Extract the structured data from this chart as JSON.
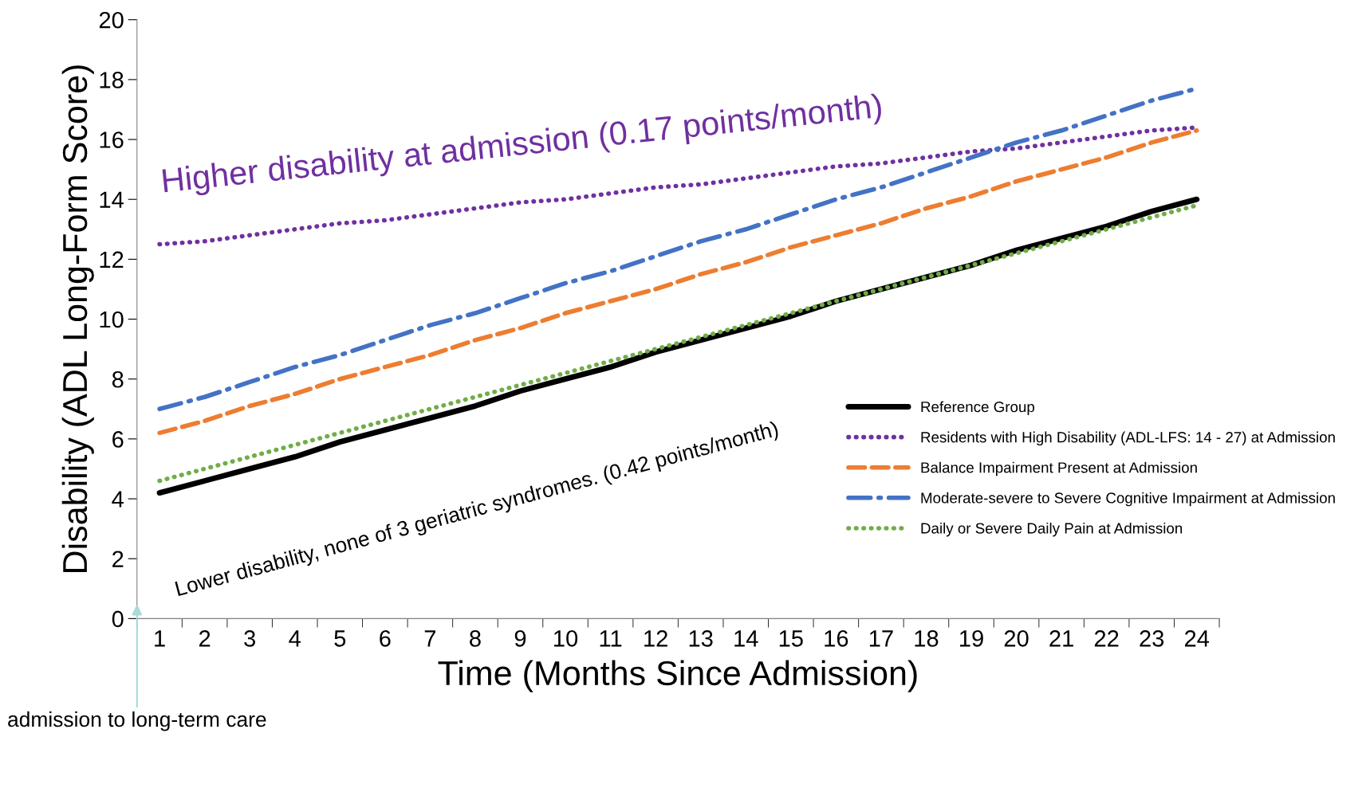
{
  "chart_data": {
    "type": "line",
    "xlabel": "Time (Months Since Admission)",
    "ylabel": "Disability (ADL Long-Form Score)",
    "categories": [
      "1",
      "2",
      "3",
      "4",
      "5",
      "6",
      "7",
      "8",
      "9",
      "10",
      "11",
      "12",
      "13",
      "14",
      "15",
      "16",
      "17",
      "18",
      "19",
      "20",
      "21",
      "22",
      "23",
      "24"
    ],
    "ylim": [
      0,
      20
    ],
    "yticks": [
      0,
      2,
      4,
      6,
      8,
      10,
      12,
      14,
      16,
      18,
      20
    ],
    "grid": false,
    "legend": "right",
    "marker": "none",
    "series": [
      {
        "name": "Reference Group",
        "color": "#000000",
        "line_style": "solid",
        "values": [
          4.2,
          4.6,
          5.0,
          5.4,
          5.9,
          6.3,
          6.7,
          7.1,
          7.6,
          8.0,
          8.4,
          8.9,
          9.3,
          9.7,
          10.1,
          10.6,
          11.0,
          11.4,
          11.8,
          12.3,
          12.7,
          13.1,
          13.6,
          14.0
        ]
      },
      {
        "name": "Residents with High Disability (ADL-LFS: 14 - 27) at Admission",
        "color": "#7030a0",
        "line_style": "dotted",
        "values": [
          12.5,
          12.6,
          12.8,
          13.0,
          13.2,
          13.3,
          13.5,
          13.7,
          13.9,
          14.0,
          14.2,
          14.4,
          14.5,
          14.7,
          14.9,
          15.1,
          15.2,
          15.4,
          15.6,
          15.7,
          15.9,
          16.1,
          16.3,
          16.4
        ]
      },
      {
        "name": "Balance Impairment Present at Admission",
        "color": "#ed7d31",
        "line_style": "dashed",
        "values": [
          6.2,
          6.6,
          7.1,
          7.5,
          8.0,
          8.4,
          8.8,
          9.3,
          9.7,
          10.2,
          10.6,
          11.0,
          11.5,
          11.9,
          12.4,
          12.8,
          13.2,
          13.7,
          14.1,
          14.6,
          15.0,
          15.4,
          15.9,
          16.3
        ]
      },
      {
        "name": "Moderate-severe to Severe Cognitive Impairment at Admission",
        "color": "#4472c4",
        "line_style": "dashdot",
        "values": [
          7.0,
          7.4,
          7.9,
          8.4,
          8.8,
          9.3,
          9.8,
          10.2,
          10.7,
          11.2,
          11.6,
          12.1,
          12.6,
          13.0,
          13.5,
          14.0,
          14.4,
          14.9,
          15.4,
          15.9,
          16.3,
          16.8,
          17.3,
          17.7
        ]
      },
      {
        "name": "Daily or Severe Daily Pain at Admission",
        "color": "#70ad47",
        "line_style": "dotted",
        "values": [
          4.6,
          5.0,
          5.4,
          5.8,
          6.2,
          6.6,
          7.0,
          7.4,
          7.8,
          8.2,
          8.6,
          9.0,
          9.4,
          9.8,
          10.2,
          10.6,
          11.0,
          11.4,
          11.8,
          12.2,
          12.6,
          13.0,
          13.4,
          13.8
        ]
      }
    ],
    "annotations": [
      "Higher disability at admission (0.17 points/month)",
      "Lower disability, none of 3 geriatric syndromes. (0.42 points/month)",
      "admission to long-term care"
    ]
  }
}
